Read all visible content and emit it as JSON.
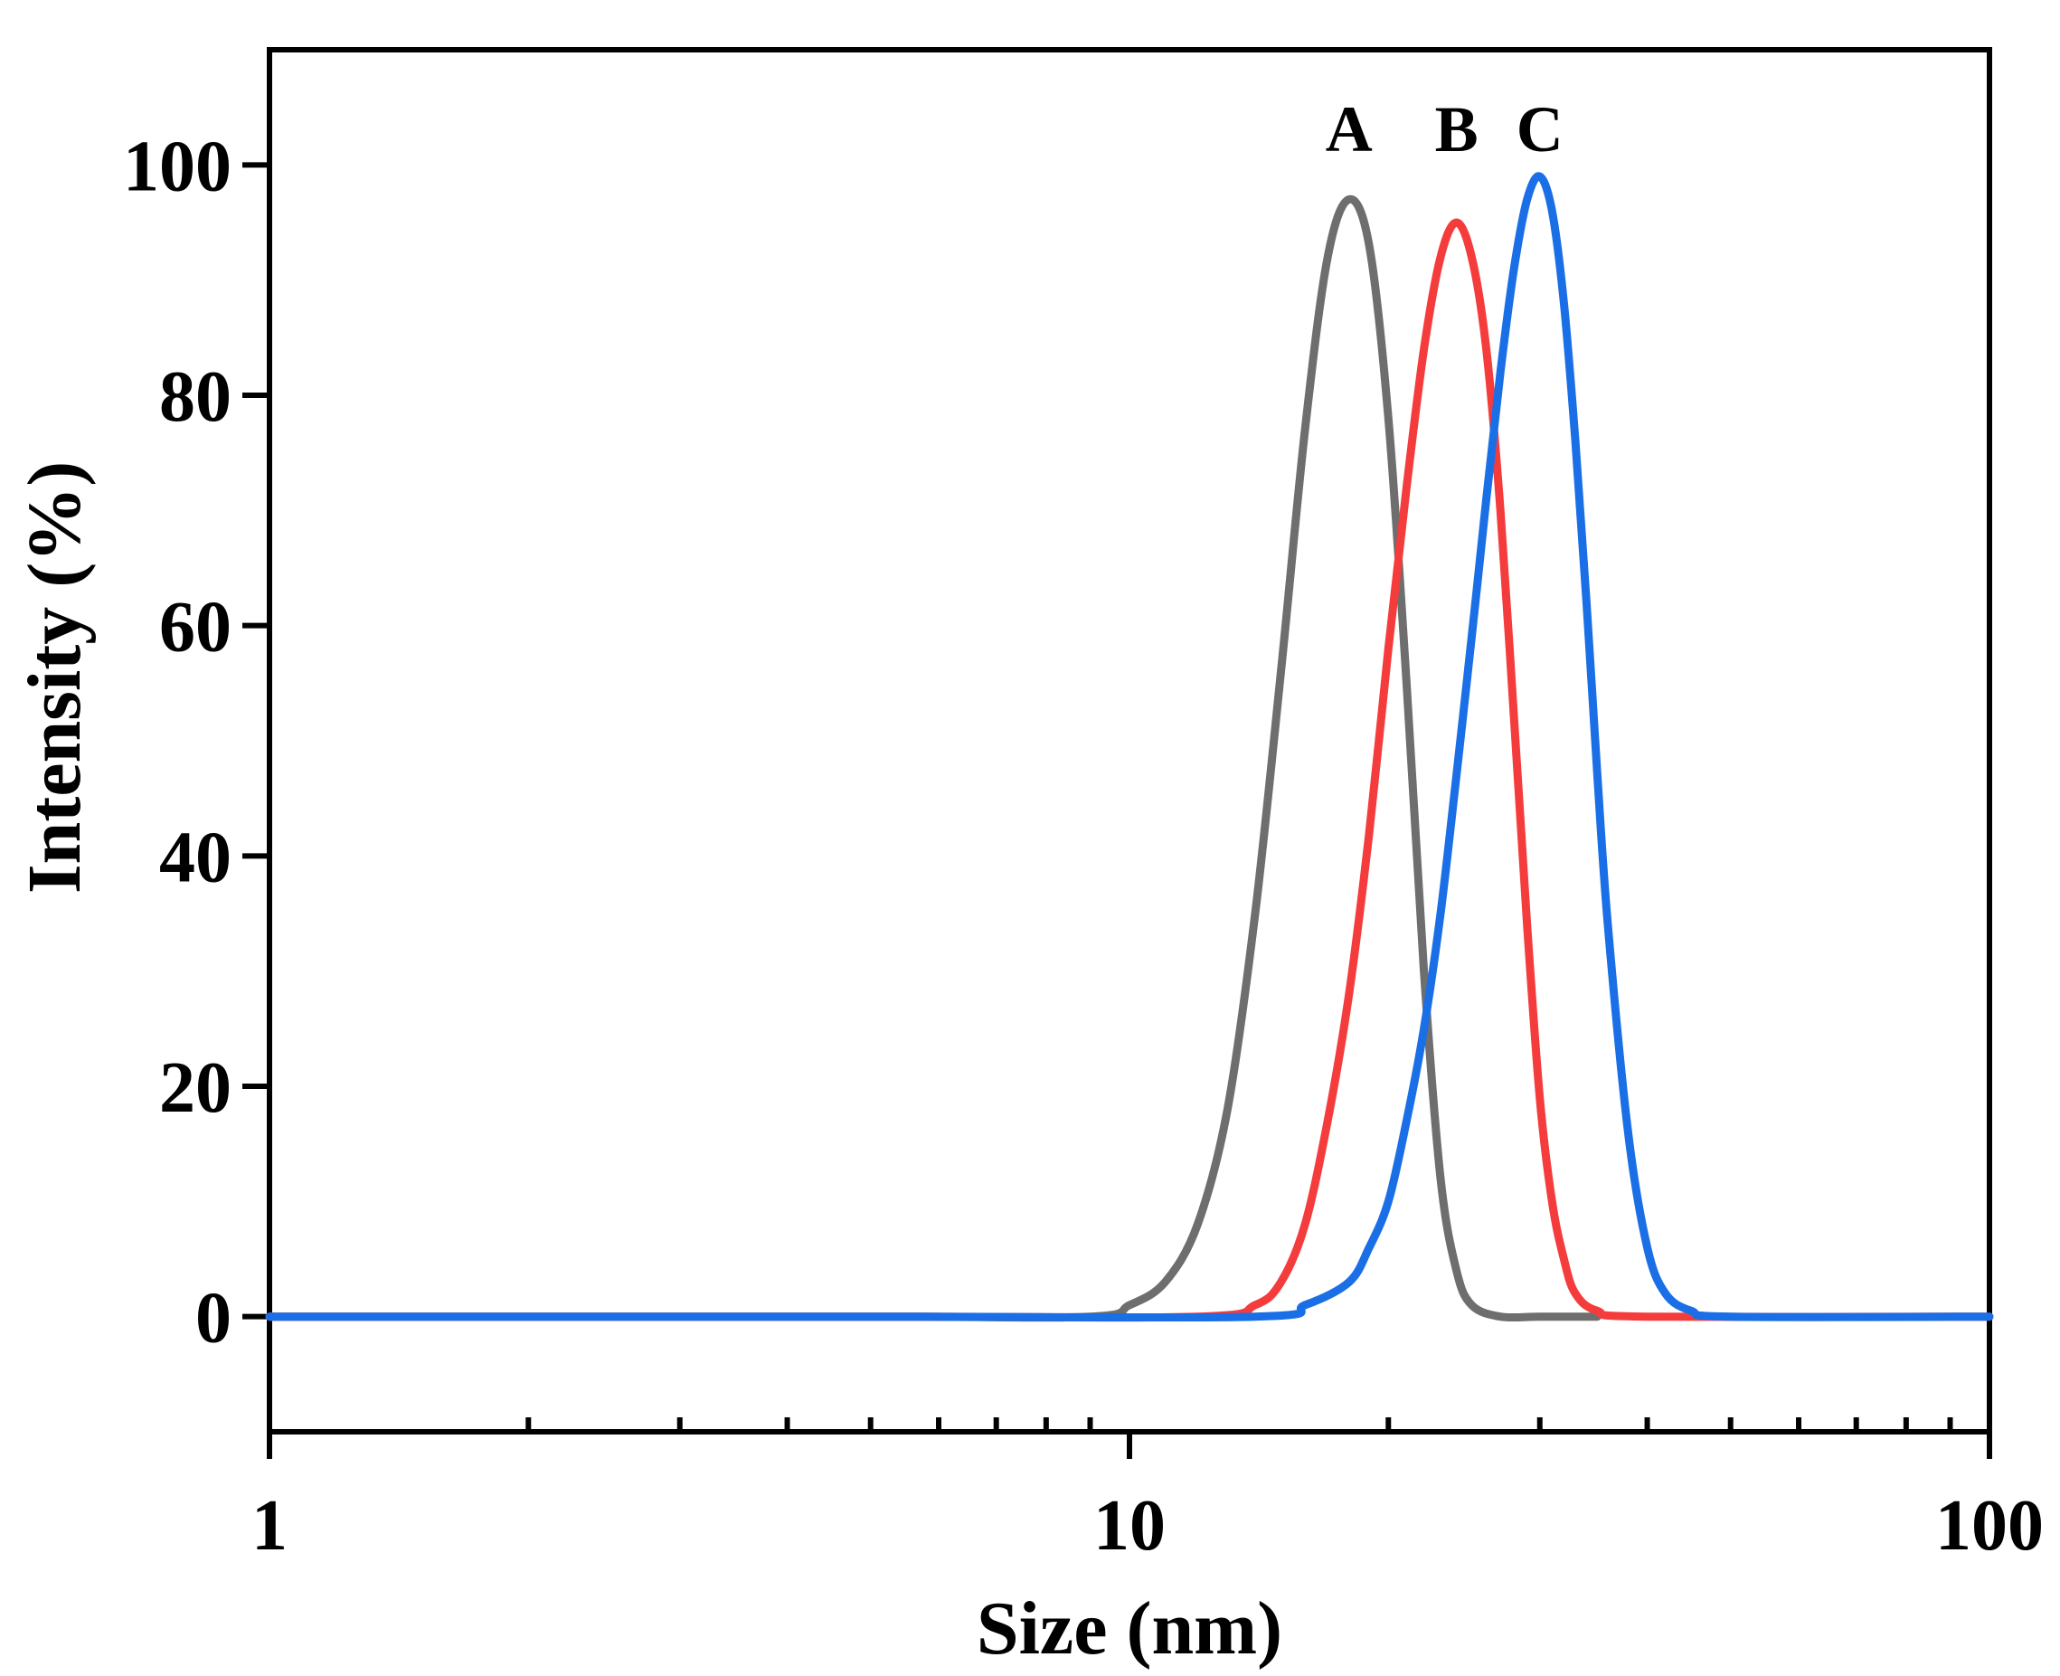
{
  "chart_data": {
    "type": "line",
    "title": "",
    "xlabel": "Size (nm)",
    "ylabel": "Intensity (%)",
    "xscale": "log",
    "xlim": [
      1,
      100
    ],
    "ylim": [
      -10,
      110
    ],
    "xticks": [
      1,
      10,
      100
    ],
    "xtick_labels": [
      "1",
      "10",
      "100"
    ],
    "yticks": [
      0,
      20,
      40,
      60,
      80,
      100
    ],
    "ytick_labels": [
      "0",
      "20",
      "40",
      "60",
      "80",
      "100"
    ],
    "grid": false,
    "legend": "none",
    "series": [
      {
        "name": "A",
        "label": "A",
        "color": "#6e6e6e",
        "x": [
          1,
          5,
          9,
          10,
          11,
          12,
          13,
          14,
          15,
          16,
          17,
          18,
          19,
          20,
          21,
          22,
          23,
          24,
          25,
          27,
          30,
          35
        ],
        "y": [
          0,
          0,
          0,
          1,
          3,
          8,
          18,
          35,
          56,
          77,
          92,
          97,
          93,
          78,
          55,
          30,
          12,
          4,
          1,
          0,
          0,
          0
        ]
      },
      {
        "name": "B",
        "label": "B",
        "color": "#f53c3c",
        "x": [
          1,
          5,
          12,
          14,
          15,
          16,
          17,
          18,
          19,
          20,
          21,
          22,
          23,
          24,
          25,
          26,
          27,
          28,
          29,
          30,
          31,
          32,
          33,
          35,
          40,
          100
        ],
        "y": [
          0,
          0,
          0,
          1,
          3,
          8,
          17,
          28,
          42,
          58,
          72,
          84,
          92,
          95,
          92,
          84,
          70,
          52,
          34,
          19,
          10,
          5,
          2,
          0.5,
          0,
          0
        ]
      },
      {
        "name": "C",
        "label": "C",
        "color": "#1a6fe6",
        "x": [
          1,
          5,
          14,
          16,
          18,
          19,
          20,
          21,
          22,
          23,
          24,
          25,
          26,
          27,
          28,
          29,
          30,
          31,
          32,
          33,
          34,
          35,
          36,
          38,
          40,
          42,
          45,
          50,
          100
        ],
        "y": [
          0,
          0,
          0,
          1,
          3,
          6,
          10,
          17,
          25,
          35,
          47,
          59,
          71,
          82,
          91,
          97,
          99,
          96,
          88,
          76,
          62,
          47,
          34,
          16,
          6,
          2,
          0.5,
          0,
          0
        ]
      }
    ]
  }
}
